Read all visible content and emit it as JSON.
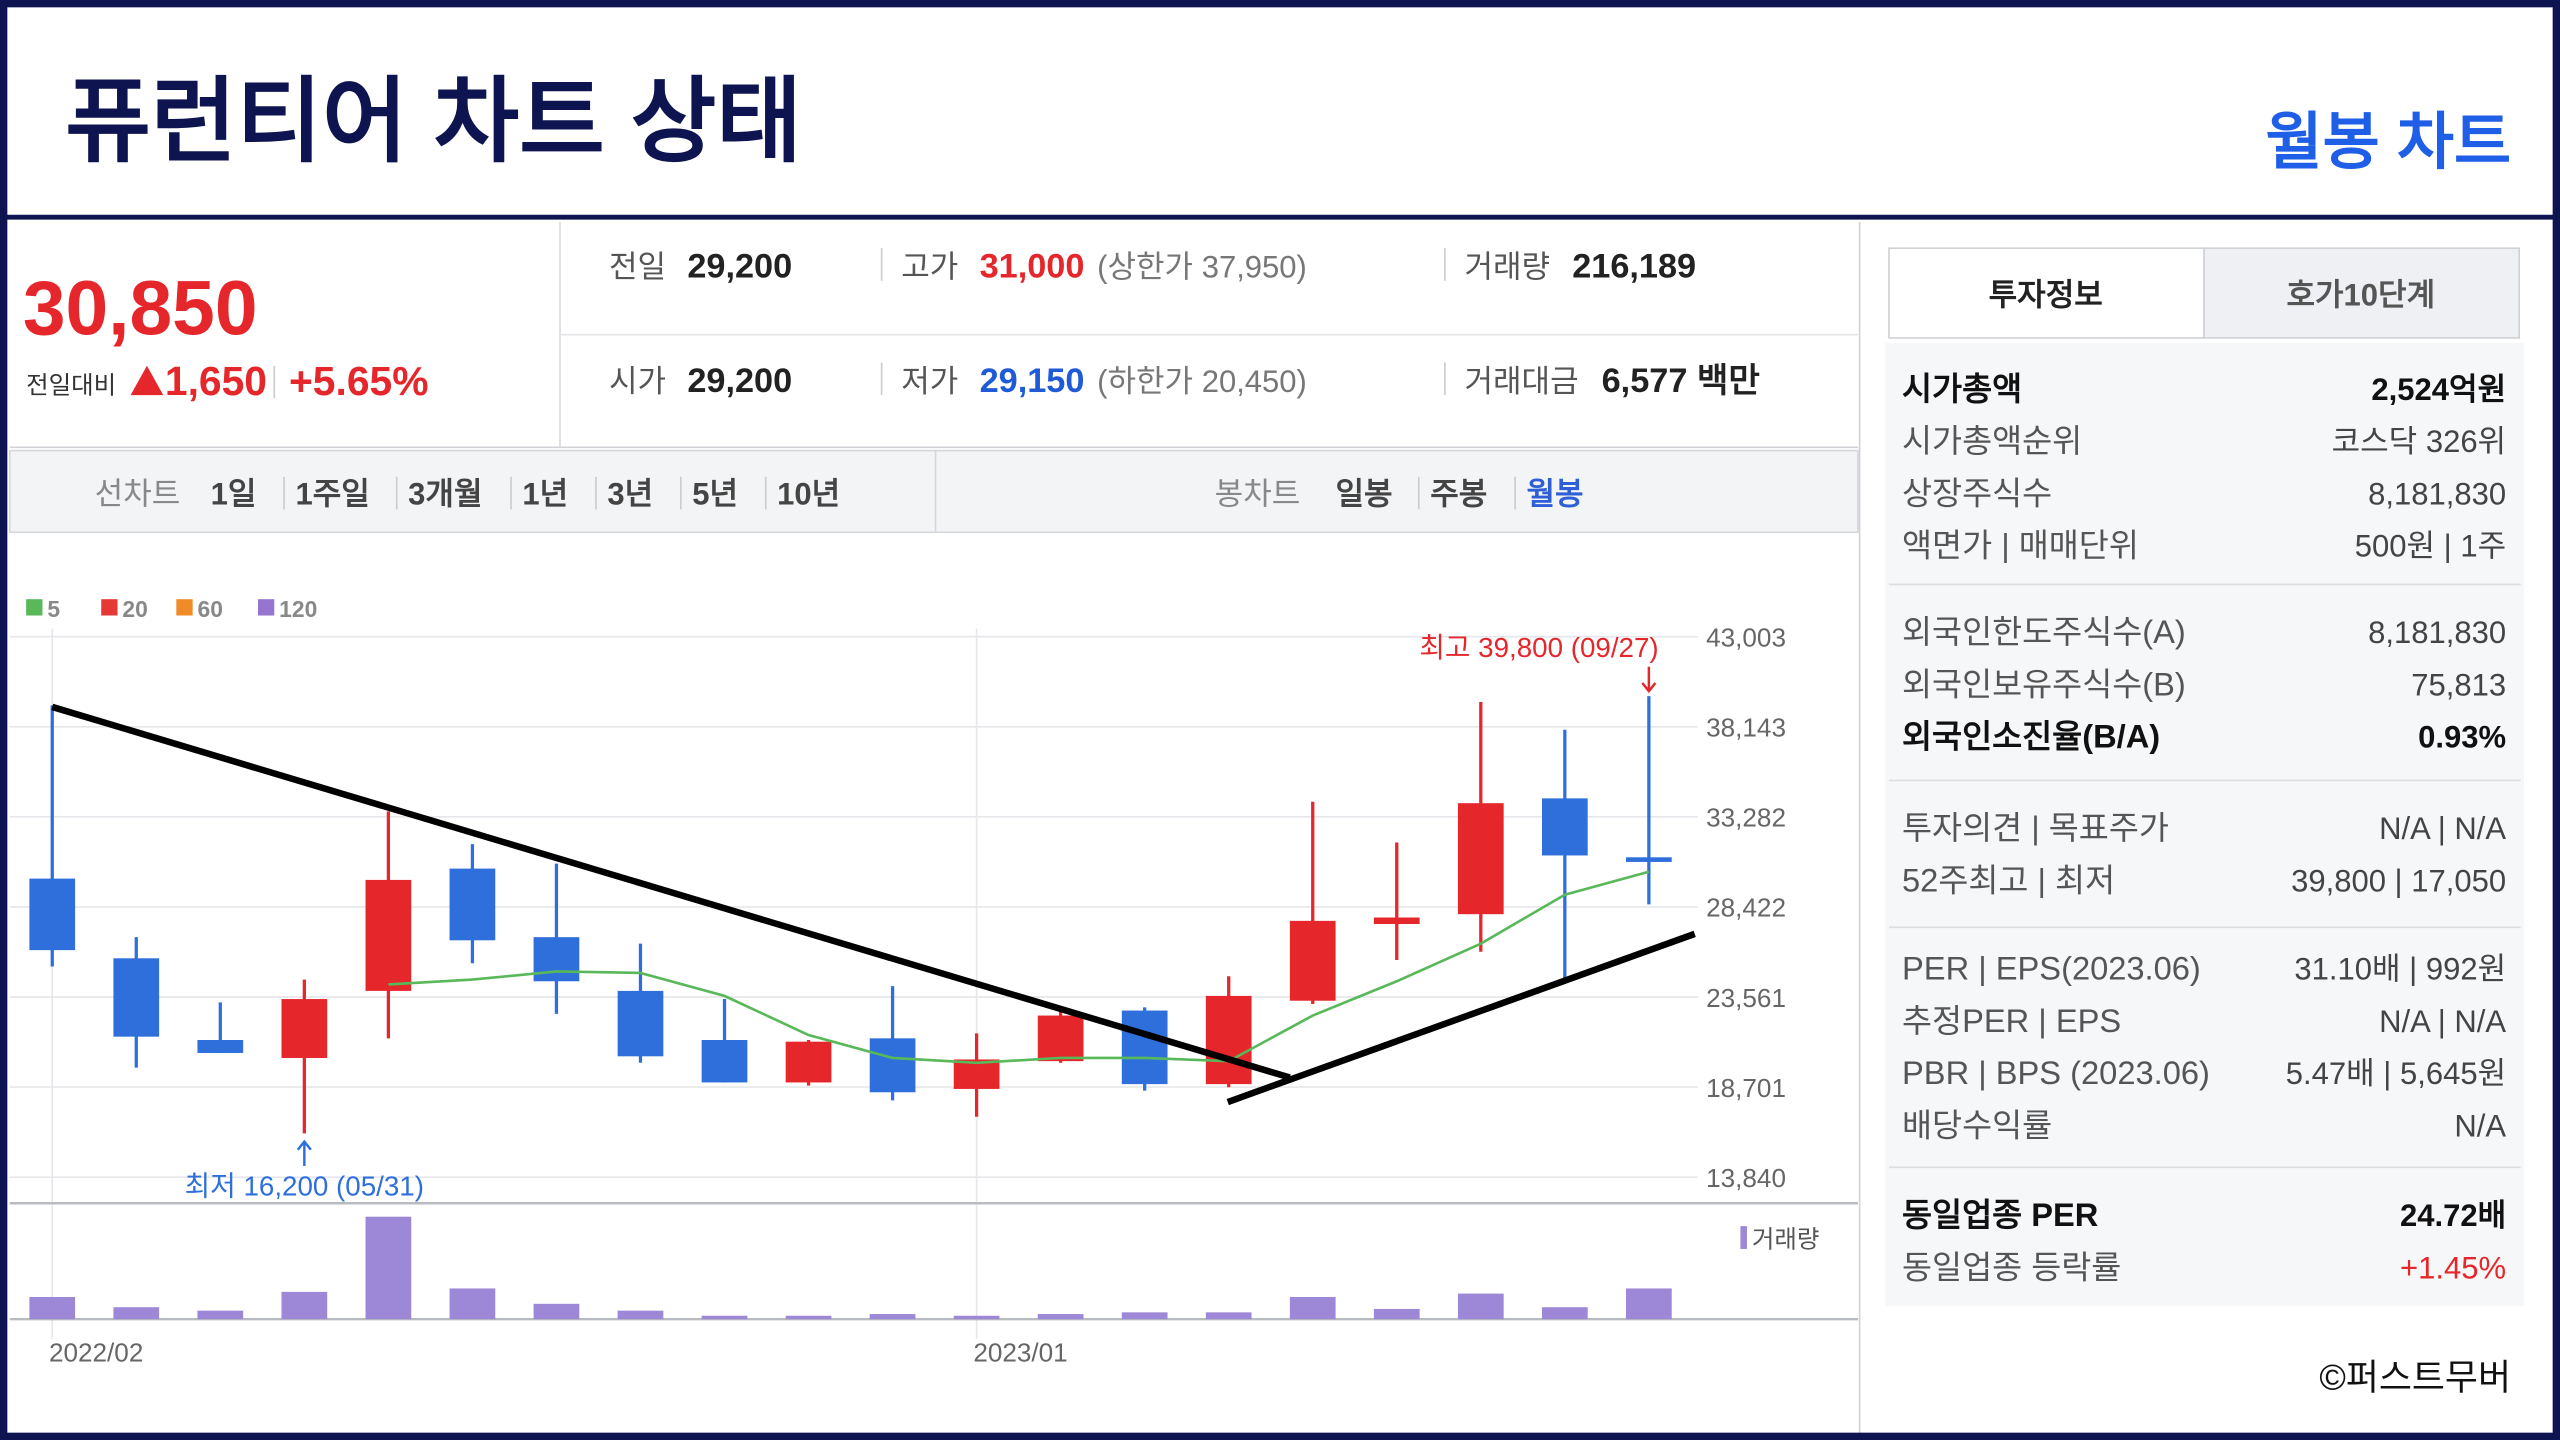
{
  "header": {
    "title": "퓨런티어 차트 상태",
    "subtitle": "월봉 차트"
  },
  "quote": {
    "price": "30,850",
    "change_label": "전일대비",
    "change": "1,650",
    "change_pct": "+5.65%",
    "fields": [
      {
        "label": "전일",
        "value": "29,200"
      },
      {
        "label": "고가",
        "value": "31,000",
        "note": "(상한가 37,950)"
      },
      {
        "label": "거래량",
        "value": "216,189"
      },
      {
        "label": "시가",
        "value": "29,200"
      },
      {
        "label": "저가",
        "value": "29,150",
        "note": "(하한가 20,450)"
      },
      {
        "label": "거래대금",
        "value": "6,577 백만"
      }
    ]
  },
  "period_tabs": {
    "line_label": "선차트",
    "line": [
      "1일",
      "1주일",
      "3개월",
      "1년",
      "3년",
      "5년",
      "10년"
    ],
    "candle_label": "봉차트",
    "candle": [
      "일봉",
      "주봉",
      "월봉"
    ],
    "candle_active": 2
  },
  "info": {
    "tabs": [
      "투자정보",
      "호가10단계"
    ],
    "active_tab": 0,
    "groups": [
      [
        {
          "label": "시가총액",
          "value": "2,524억원",
          "bold": true
        },
        {
          "label": "시가총액순위",
          "value": "코스닥 326위"
        },
        {
          "label": "상장주식수",
          "value": "8,181,830"
        },
        {
          "label": "액면가 | 매매단위",
          "value": "500원 | 1주"
        }
      ],
      [
        {
          "label": "외국인한도주식수(A)",
          "value": "8,181,830"
        },
        {
          "label": "외국인보유주식수(B)",
          "value": "75,813"
        },
        {
          "label": "외국인소진율(B/A)",
          "value": "0.93%",
          "bold": true
        }
      ],
      [
        {
          "label": "투자의견 | 목표주가",
          "value": "N/A | N/A"
        },
        {
          "label": "52주최고 | 최저",
          "value": "39,800 | 17,050"
        }
      ],
      [
        {
          "label": "PER | EPS(2023.06)",
          "value": "31.10배 | 992원"
        },
        {
          "label": "추정PER | EPS",
          "value": "N/A | N/A"
        },
        {
          "label": "PBR | BPS (2023.06)",
          "value": "5.47배 | 5,645원"
        },
        {
          "label": "배당수익률",
          "value": "N/A"
        }
      ],
      [
        {
          "label": "동일업종 PER",
          "value": "24.72배",
          "bold": true
        },
        {
          "label": "동일업종 등락률",
          "value": "+1.45%",
          "value_color": "#e5262b"
        }
      ]
    ]
  },
  "credit": "©퍼스트무버",
  "chart_data": {
    "type": "candlestick",
    "categories": [
      "2022/02",
      null,
      null,
      null,
      null,
      null,
      null,
      null,
      null,
      null,
      null,
      "2023/01",
      null,
      null,
      null,
      null,
      null,
      null,
      null,
      null
    ],
    "ohlc": {
      "open": [
        29950,
        25650,
        21240,
        20270,
        23890,
        30490,
        26790,
        23890,
        21240,
        18950,
        21330,
        18600,
        20100,
        22830,
        18860,
        23360,
        27500,
        28030,
        34280,
        31100
      ],
      "high": [
        39300,
        26790,
        23270,
        24500,
        33580,
        31810,
        30760,
        26440,
        23450,
        21240,
        24150,
        21600,
        23000,
        23000,
        24680,
        34100,
        31900,
        39480,
        37980,
        39800
      ],
      "low": [
        25210,
        19750,
        20540,
        16200,
        21330,
        25380,
        22650,
        20010,
        18950,
        18780,
        17980,
        17100,
        20010,
        18510,
        18690,
        23180,
        25560,
        26000,
        24500,
        28560
      ],
      "close": [
        26090,
        21420,
        20540,
        23450,
        29880,
        26620,
        24410,
        20360,
        18950,
        21150,
        18420,
        20190,
        22560,
        18860,
        23620,
        27670,
        27850,
        34020,
        31200,
        30850
      ]
    },
    "up_color": "#e5262b",
    "down_color": "#2e6fdb",
    "series": [
      {
        "name": "5",
        "color": "#58b85a",
        "values": [
          null,
          null,
          null,
          null,
          24240,
          24500,
          24940,
          24860,
          23620,
          21510,
          20270,
          20010,
          20270,
          20270,
          20100,
          22560,
          24410,
          26440,
          29080,
          30320
        ]
      },
      {
        "name": "20",
        "color": "#e53935"
      },
      {
        "name": "60",
        "color": "#f08c28"
      },
      {
        "name": "120",
        "color": "#9575cd"
      }
    ],
    "ylim": [
      12430,
      43443
    ],
    "yticks": [
      {
        "value": 43003,
        "label": "43,003"
      },
      {
        "value": 38143,
        "label": "38,143"
      },
      {
        "value": 33282,
        "label": "33,282"
      },
      {
        "value": 28422,
        "label": "28,422"
      },
      {
        "value": 23561,
        "label": "23,561"
      },
      {
        "value": 18701,
        "label": "18,701"
      },
      {
        "value": 13840,
        "label": "13,840"
      }
    ],
    "grid": true,
    "max_label": "최고 39,800 (09/27)",
    "min_label": "최저 16,200 (05/31)",
    "volume": {
      "name": "거래량",
      "color": "#9c88d6",
      "values": [
        13,
        7,
        5,
        16,
        60,
        18,
        9,
        5,
        2,
        2,
        3,
        2,
        3,
        4,
        4,
        13,
        6,
        15,
        7,
        18
      ]
    },
    "vlim": [
      0,
      65
    ]
  }
}
